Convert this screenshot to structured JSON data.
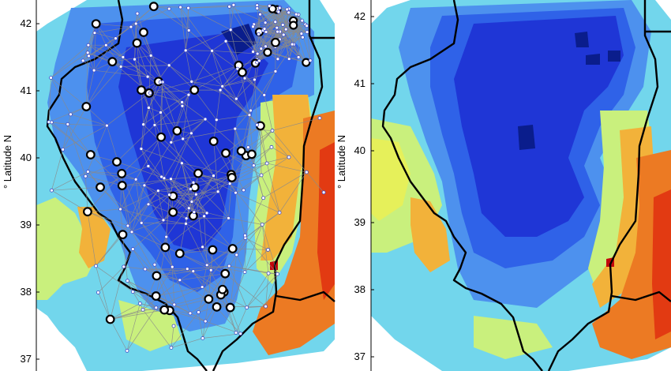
{
  "panels": [
    {
      "id": "left",
      "ylabel": "° Latitude N",
      "yticks": [
        "42",
        "41",
        "40",
        "39",
        "38",
        "37"
      ],
      "overlay": "station-network"
    },
    {
      "id": "right",
      "ylabel": "° Latitude N",
      "yticks": [
        "42",
        "41",
        "40",
        "39",
        "38",
        "37"
      ],
      "overlay": "none"
    }
  ],
  "colors": {
    "band_1": "#0a1d8c",
    "band_2": "#1f36d6",
    "band_3": "#2f62e8",
    "band_4": "#4d91ee",
    "band_5": "#72d6ec",
    "band_6": "#c9f07d",
    "band_7": "#e6f05a",
    "band_8": "#f2b23a",
    "band_9": "#ec7a23",
    "band_10": "#e23a12",
    "band_11": "#c3060b",
    "boundary": "#000000",
    "network_links": "#8a8a8a",
    "station_small": "#ffffff",
    "station_small_edge": "#3a46c8"
  }
}
